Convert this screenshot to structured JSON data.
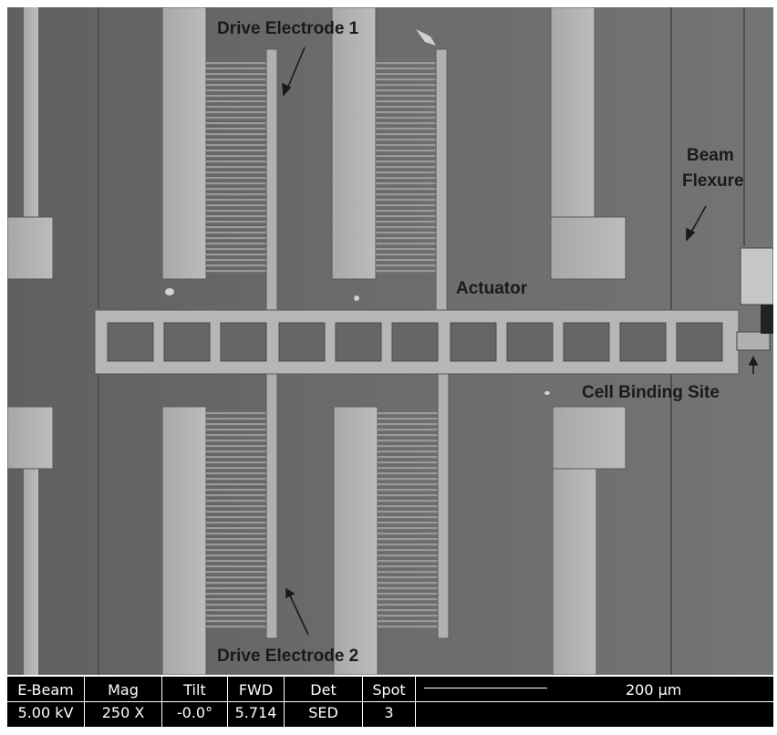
{
  "image": {
    "annotations": {
      "drive_electrode_1": "Drive Electrode 1",
      "drive_electrode_2": "Drive Electrode 2",
      "beam": "Beam",
      "flexure": "Flexure",
      "actuator": "Actuator",
      "cell_binding_site": "Cell Binding Site"
    }
  },
  "info_bar": {
    "cells": [
      {
        "key": "E-Beam",
        "value": "5.00 kV"
      },
      {
        "key": "Mag",
        "value": "250 X"
      },
      {
        "key": "Tilt",
        "value": "-0.0°"
      },
      {
        "key": "FWD",
        "value": "5.714"
      },
      {
        "key": "Det",
        "value": "SED"
      },
      {
        "key": "Spot",
        "value": "3"
      }
    ],
    "scale_label": "200 µm"
  },
  "colors": {
    "background": "#6e6e6e",
    "metal": "#b4b4b4",
    "bar": "#000000"
  }
}
